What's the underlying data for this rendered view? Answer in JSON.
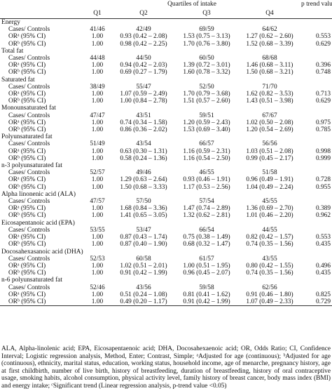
{
  "header": {
    "span_title": "Quartiles of intake",
    "p_title": "p trend value",
    "columns": [
      "Q1",
      "Q2",
      "Q3",
      "Q4"
    ]
  },
  "groups": [
    {
      "name": "Energy",
      "rows": [
        [
          "Cases/ Controls",
          "41/46",
          "42/49",
          "69/59",
          "64/62"
        ],
        [
          "ORᵃ (95% CI)",
          "1.00",
          "0.93 (0.42 – 2.08)",
          "1.53 (0.75 – 3.13)",
          "1.27 (0.62 – 2.60)",
          "0.553"
        ],
        [
          "ORᵇ (95% CI)",
          "1.00",
          "0.98 (0.42 – 2.25)",
          "1.70 (0.76 – 3.80)",
          "1.52 (0.68 – 3.39)",
          "0.629"
        ]
      ]
    },
    {
      "name": "Total fat",
      "rows": [
        [
          "Cases/ Controls",
          "44/48",
          "44/50",
          "60/50",
          "68/68"
        ],
        [
          "ORᵃ (95% CI)",
          "1.00",
          "0.94 (0.42 – 2.03)",
          "1.39 (0.72 – 3.01)",
          "1.46 (0.68 – 3.11)",
          "0.396"
        ],
        [
          "ORᵇ (95% CI)",
          "1.00",
          "0.69 (0.27 – 1.79)",
          "1.60 (0.78 – 3.32)",
          "1.50 (0.68 – 3.21)",
          "0.748"
        ]
      ]
    },
    {
      "name": "Saturated fat",
      "rows": [
        [
          "Cases/ Controls",
          "38/49",
          "55/47",
          "52/50",
          "71/70"
        ],
        [
          "ORᵃ (95% CI)",
          "1.00",
          "1.07 (0.59 – 2.49)",
          "1.70 (0.79 – 3.68)",
          "1.62 (0.82 – 3.53)",
          "0.713"
        ],
        [
          "ORᵇ (95% CI)",
          "1.00",
          "1.00 (0.84 – 2.78)",
          "1.51 (0.57 – 2.60)",
          "1.43 (0.51 – 3.98)",
          "0.629"
        ]
      ]
    },
    {
      "name": "Monounsaturated fat",
      "rows": [
        [
          "Cases/ Controls",
          "47/47",
          "43/51",
          "59/51",
          "67/67"
        ],
        [
          "ORᵃ (95% CI)",
          "1.00",
          "0.74 (0.34 – 1.58)",
          "1.20 (0.59 – 2.43)",
          "1.02 (0.50 – 2.08)",
          "0.975"
        ],
        [
          "ORᵇ (95% CI)",
          "1.00",
          "0.86 (0.36 – 2.02)",
          "1.53 (0.69 – 3.40)",
          "1.20 (0.54 – 2.69)",
          "0.785"
        ]
      ]
    },
    {
      "name": "Polyunsaturated fat",
      "rows": [
        [
          "Cases/ Controls",
          "51/49",
          "43/54",
          "66/57",
          "56/56"
        ],
        [
          "ORᵃ (95% CI)",
          "1.00",
          "0.63 (0.30 – 1.31)",
          "1.16 (0.59 – 2.31)",
          "1.03 (0.51 – 2.08)",
          "0.998"
        ],
        [
          "ORᵇ (95% CI)",
          "1.00",
          "0.58 (0.24 – 1.36)",
          "1.16 (0.54 – 2.50)",
          "0.99 (0.45 – 2.17)",
          "0.999"
        ]
      ]
    },
    {
      "name": "n-3 polyunsaturated fat",
      "rows": [
        [
          "Cases/ Controls",
          "52/57",
          "49/46",
          "46/55",
          "51/58"
        ],
        [
          "ORᵃ (95% CI)",
          "1.00",
          "1.29 (0.63 – 2.64)",
          "0.93 (0.46 – 1.91)",
          "0.96 (0.49 – 1.91)",
          "0.728"
        ],
        [
          "ORᵇ (95% CI)",
          "1.00",
          "1.50 (0.68 – 3.33)",
          "1.17 (0.53 – 2.56)",
          "1.04 (0.49 – 2.24)",
          "0.955"
        ]
      ]
    },
    {
      "name": "Alpha linonenic acid (ALA)",
      "rows": [
        [
          "Cases/ Controls",
          "47/57",
          "57/50",
          "57/54",
          "45/55"
        ],
        [
          "ORᵃ (95% CI)",
          "1.00",
          "1.68 (0.84 – 3.36)",
          "1.47 (0.74 – 2.89)",
          "1.36 (0.69 – 2.70)",
          "0.389"
        ],
        [
          "ORᵇ (95% CI)",
          "1.00",
          "1.41 (0.65 – 3.05)",
          "1.32 (0.62 – 2.81)",
          "1.01 (0.46 – 2.20)",
          "0.962"
        ]
      ]
    },
    {
      "name": "Eicosapentanoic acid (EPA)",
      "rows": [
        [
          "Cases/ Controls",
          "53/55",
          "53/47",
          "66/54",
          "44/55"
        ],
        [
          "ORᵃ (95% CI)",
          "1.00",
          "0.87 (0.43 – 1.74)",
          "0.75 (0.38 – 1.49)",
          "0.82 (0.42 – 1.57)",
          "0.553"
        ],
        [
          "ORᵇ (95% CI)",
          "1.00",
          "0.87 (0.40 – 1.90)",
          "0.68 (0.32 – 1.47)",
          "0.74 (0.35 – 1.56)",
          "0.435"
        ]
      ]
    },
    {
      "name": "Docosahexasanoic acid (DHA)",
      "rows": [
        [
          "Cases/ Controls",
          "52/53",
          "60/58",
          "61/57",
          "43/55"
        ],
        [
          "ORᵃ (95% CI)",
          "1.00",
          "1.02 (0.51 – 2.01)",
          "1.00 (0.51 – 1.95)",
          "0.80 (0.42 – 1.55)",
          "0.496"
        ],
        [
          "ORᵇ (95% CI)",
          "1.00",
          "0.91 (0.42 – 1.99)",
          "0.96 (0.45 – 2.07)",
          "0.74 (0.35 – 1.56)",
          "0.435"
        ]
      ]
    },
    {
      "name": "n-6 polyunsaturated fat",
      "rows": [
        [
          "Cases/ Controls",
          "52/46",
          "43/56",
          "59/58",
          "62/56"
        ],
        [
          "ORᵃ (95% CI)",
          "1.00",
          "0.51 (0.24 – 1.08)",
          "0.81 (0.41 – 1.62)",
          "0.91 (0.46 – 1.80)",
          "0.825"
        ],
        [
          "ORᵇ (95% CI)",
          "1.00",
          "0.49 (0.20 – 1.17)",
          "0.91 (0.42 – 1.99)",
          "1.07 (0.49 – 2.33)",
          "0.729"
        ]
      ]
    }
  ],
  "footnote": "ALA, Alpha-linolenic acid; EPA, Eicosapentaenoic acid; DHA, Docosahexaenoic acid; OR, Odds Ratio; CI, Confidence Interval; Logistic regression analysis, Method, Enter; Contrast, Simple; ᵃAdjusted for age (continuous); ᵇAdjusted for age (continuous), ethnicity, marital status, education, working status, household income, age of menarche, pregnancy history, age at first childbirth, number of live birth, history of breastfeeding, duration of breastfeeding, history of oral contraceptive usage, smoking habits, alcohol consumption, physical activity level, family history of breast cancer, body mass index (BMI) and energy intake; ᶜSignificant trend (Linear regression analysis, p-trend value <0.05)"
}
